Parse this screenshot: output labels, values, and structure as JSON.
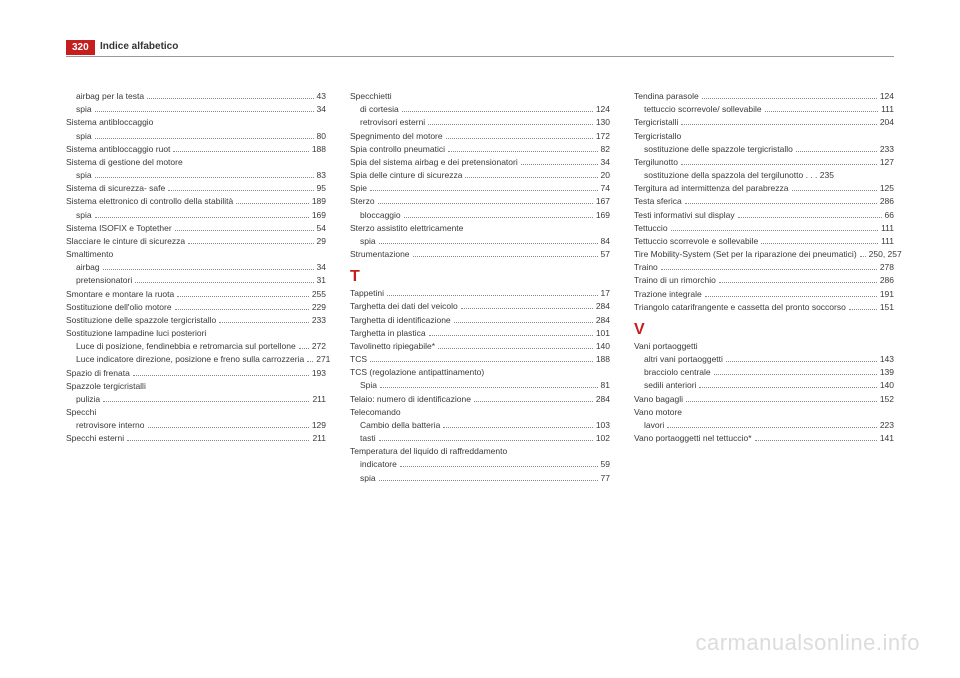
{
  "page_number": "320",
  "page_title": "Indice alfabetico",
  "watermark": "carmanualsonline.info",
  "columns": [
    {
      "entries": [
        {
          "label": "airbag per la testa",
          "page": "43",
          "indent": 1
        },
        {
          "label": "spia",
          "page": "34",
          "indent": 1
        },
        {
          "label": "Sistema antibloccaggio",
          "indent": 0,
          "nopage": true
        },
        {
          "label": "spia",
          "page": "80",
          "indent": 1
        },
        {
          "label": "Sistema antibloccaggio ruot",
          "page": "188",
          "indent": 0
        },
        {
          "label": "Sistema di gestione del motore",
          "indent": 0,
          "nopage": true
        },
        {
          "label": "spia",
          "page": "83",
          "indent": 1
        },
        {
          "label": "Sistema di sicurezza- safe",
          "page": "95",
          "indent": 0
        },
        {
          "label": "Sistema elettronico di controllo della stabilità",
          "page": "189",
          "indent": 0
        },
        {
          "label": "spia",
          "page": "169",
          "indent": 1
        },
        {
          "label": "Sistema ISOFIX e Toptether",
          "page": "54",
          "indent": 0
        },
        {
          "label": "Slacciare le cinture di sicurezza",
          "page": "29",
          "indent": 0
        },
        {
          "label": "Smaltimento",
          "indent": 0,
          "nopage": true
        },
        {
          "label": "airbag",
          "page": "34",
          "indent": 1
        },
        {
          "label": "pretensionatori",
          "page": "31",
          "indent": 1
        },
        {
          "label": "Smontare e montare la ruota",
          "page": "255",
          "indent": 0
        },
        {
          "label": "Sostituzione dell'olio motore",
          "page": "229",
          "indent": 0
        },
        {
          "label": "Sostituzione delle spazzole tergicristallo",
          "page": "233",
          "indent": 0
        },
        {
          "label": "Sostituzione lampadine luci posteriori",
          "indent": 0,
          "nopage": true
        },
        {
          "label": "Luce di posizione, fendinebbia e retromarcia sul portellone",
          "page": "272",
          "indent": 1
        },
        {
          "label": "Luce indicatore direzione, posizione e freno sulla carrozzeria",
          "page": "271",
          "indent": 1
        },
        {
          "label": "Spazio di frenata",
          "page": "193",
          "indent": 0
        },
        {
          "label": "Spazzole tergicristalli",
          "indent": 0,
          "nopage": true
        },
        {
          "label": "pulizia",
          "page": "211",
          "indent": 1
        },
        {
          "label": "Specchi",
          "indent": 0,
          "nopage": true
        },
        {
          "label": "retrovisore interno",
          "page": "129",
          "indent": 1
        },
        {
          "label": "Specchi esterni",
          "page": "211",
          "indent": 0
        }
      ]
    },
    {
      "entries": [
        {
          "label": "Specchietti",
          "indent": 0,
          "nopage": true
        },
        {
          "label": "di cortesia",
          "page": "124",
          "indent": 1
        },
        {
          "label": "retrovisori esterni",
          "page": "130",
          "indent": 1
        },
        {
          "label": "Spegnimento del motore",
          "page": "172",
          "indent": 0
        },
        {
          "label": "Spia controllo pneumatici",
          "page": "82",
          "indent": 0
        },
        {
          "label": "Spia del sistema airbag e dei pretensionatori",
          "page": "34",
          "indent": 0
        },
        {
          "label": "Spia delle cinture di sicurezza",
          "page": "20",
          "indent": 0
        },
        {
          "label": "Spie",
          "page": "74",
          "indent": 0
        },
        {
          "label": "Sterzo",
          "page": "167",
          "indent": 0
        },
        {
          "label": "bloccaggio",
          "page": "169",
          "indent": 1
        },
        {
          "label": "Sterzo assistito elettricamente",
          "indent": 0,
          "nopage": true
        },
        {
          "label": "spia",
          "page": "84",
          "indent": 1
        },
        {
          "label": "Strumentazione",
          "page": "57",
          "indent": 0
        },
        {
          "letter": "T"
        },
        {
          "label": "Tappetini",
          "page": "17",
          "indent": 0
        },
        {
          "label": "Targhetta dei dati del veicolo",
          "page": "284",
          "indent": 0
        },
        {
          "label": "Targhetta di identificazione",
          "page": "284",
          "indent": 0
        },
        {
          "label": "Targhetta in plastica",
          "page": "101",
          "indent": 0
        },
        {
          "label": "Tavolinetto ripiegabile*",
          "page": "140",
          "indent": 0
        },
        {
          "label": "TCS",
          "page": "188",
          "indent": 0
        },
        {
          "label": "TCS (regolazione antipattinamento)",
          "indent": 0,
          "nopage": true
        },
        {
          "label": "Spia",
          "page": "81",
          "indent": 1
        },
        {
          "label": "Telaio: numero di identificazione",
          "page": "284",
          "indent": 0
        },
        {
          "label": "Telecomando",
          "indent": 0,
          "nopage": true
        },
        {
          "label": "Cambio della batteria",
          "page": "103",
          "indent": 1
        },
        {
          "label": "tasti",
          "page": "102",
          "indent": 1
        },
        {
          "label": "Temperatura del liquido di raffreddamento",
          "indent": 0,
          "nopage": true
        },
        {
          "label": "indicatore",
          "page": "59",
          "indent": 1
        },
        {
          "label": "spia",
          "page": "77",
          "indent": 1
        }
      ]
    },
    {
      "entries": [
        {
          "label": "Tendina parasole",
          "page": "124",
          "indent": 0
        },
        {
          "label": "tettuccio scorrevole/ sollevabile",
          "page": "111",
          "indent": 1
        },
        {
          "label": "Tergicristalli",
          "page": "204",
          "indent": 0
        },
        {
          "label": "Tergicristallo",
          "indent": 0,
          "nopage": true
        },
        {
          "label": "sostituzione delle spazzole tergicristallo",
          "page": "233",
          "indent": 1
        },
        {
          "label": "Tergilunotto",
          "page": "127",
          "indent": 0
        },
        {
          "label": "sostituzione della spazzola del tergilunotto . . . 235",
          "indent": 1,
          "nopage": true
        },
        {
          "label": "Tergitura ad intermittenza del parabrezza",
          "page": "125",
          "indent": 0
        },
        {
          "label": "Testa sferica",
          "page": "286",
          "indent": 0
        },
        {
          "label": "Testi informativi sul display",
          "page": "66",
          "indent": 0
        },
        {
          "label": "Tettuccio",
          "page": "111",
          "indent": 0
        },
        {
          "label": "Tettuccio scorrevole e sollevabile",
          "page": "111",
          "indent": 0
        },
        {
          "label": "Tire Mobility-System (Set per la riparazione dei pneumatici)",
          "page": "250, 257",
          "indent": 0
        },
        {
          "label": "Traino",
          "page": "278",
          "indent": 0
        },
        {
          "label": "Traino di un rimorchio",
          "page": "286",
          "indent": 0
        },
        {
          "label": "Trazione integrale",
          "page": "191",
          "indent": 0
        },
        {
          "label": "Triangolo catarifrangente e cassetta del pronto soccorso",
          "page": "151",
          "indent": 0
        },
        {
          "letter": "V"
        },
        {
          "label": "Vani portaoggetti",
          "indent": 0,
          "nopage": true
        },
        {
          "label": "altri vani portaoggetti",
          "page": "143",
          "indent": 1
        },
        {
          "label": "bracciolo centrale",
          "page": "139",
          "indent": 1
        },
        {
          "label": "sedili anteriori",
          "page": "140",
          "indent": 1
        },
        {
          "label": "Vano bagagli",
          "page": "152",
          "indent": 0
        },
        {
          "label": "Vano motore",
          "indent": 0,
          "nopage": true
        },
        {
          "label": "lavori",
          "page": "223",
          "indent": 1
        },
        {
          "label": "Vano portaoggetti nel tettuccio*",
          "page": "141",
          "indent": 0
        }
      ]
    }
  ]
}
